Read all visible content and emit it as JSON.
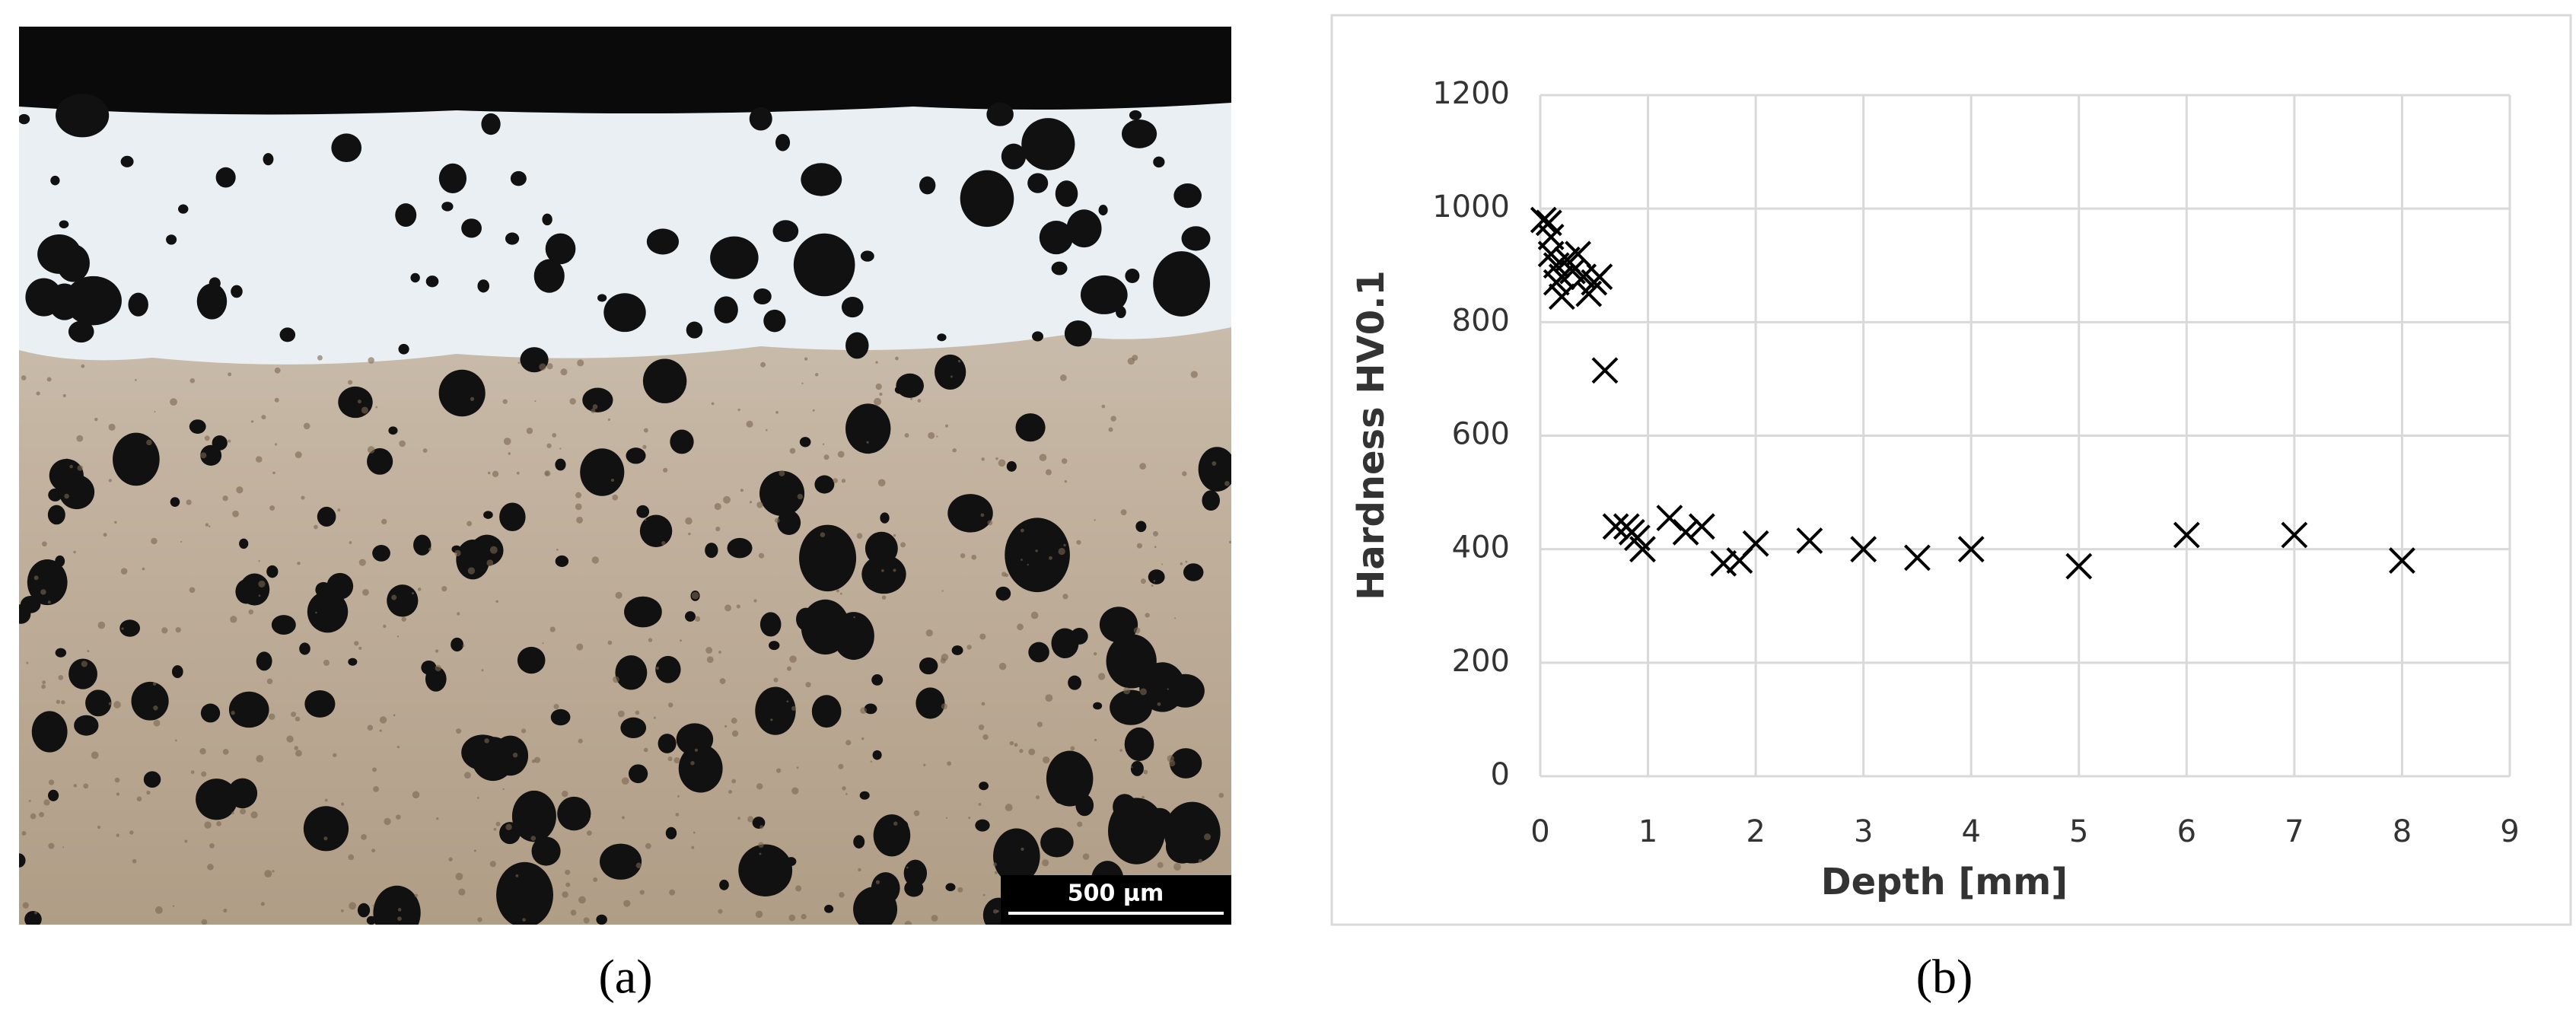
{
  "image_panel": {
    "scale_bar": "500 µm",
    "caption": "(a)"
  },
  "chart_data": {
    "type": "scatter",
    "caption": "(b)",
    "x_label": "Depth [mm]",
    "y_label": "Hardness HV0.1",
    "x": [
      0.03,
      0.08,
      0.1,
      0.1,
      0.15,
      0.2,
      0.15,
      0.2,
      0.25,
      0.3,
      0.35,
      0.4,
      0.45,
      0.5,
      0.55,
      0.6,
      0.7,
      0.8,
      0.85,
      0.9,
      0.95,
      1.2,
      1.35,
      1.5,
      1.7,
      1.85,
      2,
      2.5,
      3,
      3.5,
      4,
      5,
      6,
      7,
      8
    ],
    "values": [
      980,
      975,
      950,
      920,
      900,
      880,
      870,
      845,
      910,
      890,
      920,
      880,
      850,
      870,
      880,
      715,
      440,
      440,
      430,
      420,
      400,
      455,
      430,
      440,
      375,
      380,
      410,
      415,
      400,
      385,
      400,
      370,
      425,
      425,
      380
    ],
    "color": "#000000",
    "xlim": [
      0,
      9
    ],
    "xticks": [
      0,
      1,
      2,
      3,
      4,
      5,
      6,
      7,
      8,
      9
    ],
    "ylim": [
      0,
      1200
    ],
    "yticks": [
      0,
      200,
      400,
      600,
      800,
      1000,
      1200
    ],
    "grid": true
  }
}
